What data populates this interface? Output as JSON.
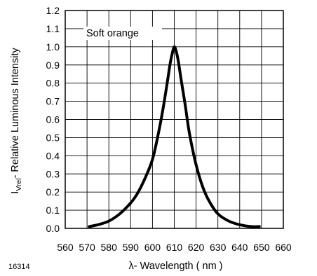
{
  "figure_id": "16314",
  "chart_data": {
    "type": "line",
    "xlabel": "λ- Wavelength ( nm )",
    "ylabel_main": "I",
    "ylabel_sub": "Vrel",
    "ylabel_rest": "- Relative Luminous Intensity",
    "annotation": "Soft orange",
    "xlim": [
      560,
      660
    ],
    "ylim": [
      0,
      1.2
    ],
    "x_ticks": [
      560,
      570,
      580,
      590,
      600,
      610,
      620,
      630,
      640,
      650,
      660
    ],
    "y_ticks": [
      0.0,
      0.1,
      0.2,
      0.3,
      0.4,
      0.5,
      0.6,
      0.7,
      0.8,
      0.9,
      1.0,
      1.1,
      1.2
    ],
    "y_tick_labels": [
      "0.0",
      "0.1",
      "0.2",
      "0.3",
      "0.4",
      "0.5",
      "0.6",
      "0.7",
      "0.8",
      "0.9",
      "1.0",
      "1.1",
      "1.2"
    ],
    "x_grid_lines": [
      570,
      580,
      590,
      600,
      610,
      620,
      630,
      640,
      650
    ],
    "y_grid_lines": [
      0.1,
      0.2,
      0.3,
      0.4,
      0.5,
      0.6,
      0.7,
      0.8,
      0.9,
      1.0,
      1.1
    ],
    "grid": true,
    "line_color": "#000000",
    "series": [
      {
        "x": [
          571,
          575,
          580,
          585,
          590,
          593,
          596,
          600,
          603,
          605,
          607,
          608,
          609,
          610,
          611,
          612,
          613,
          615,
          617,
          620,
          623,
          626,
          630,
          635,
          640,
          645,
          649
        ],
        "y": [
          0.01,
          0.02,
          0.04,
          0.08,
          0.14,
          0.19,
          0.26,
          0.38,
          0.54,
          0.67,
          0.82,
          0.9,
          0.96,
          1.0,
          0.97,
          0.91,
          0.83,
          0.68,
          0.52,
          0.35,
          0.23,
          0.15,
          0.08,
          0.04,
          0.02,
          0.01,
          0.01
        ]
      }
    ]
  }
}
